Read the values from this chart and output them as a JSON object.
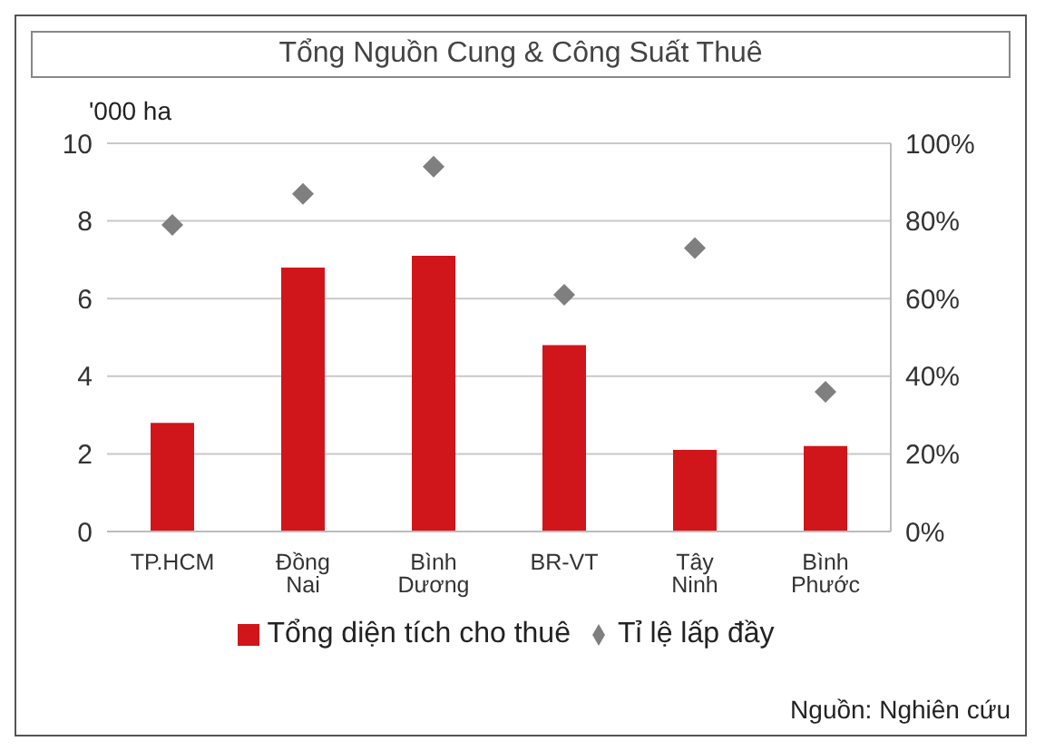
{
  "chart_data": {
    "type": "bar",
    "title": "Tổng Nguồn Cung & Công Suất Thuê",
    "ylabel": "'000 ha",
    "categories": [
      "TP.HCM",
      "Đồng Nai",
      "Bình Dương",
      "BR-VT",
      "Tây Ninh",
      "Bình Phước"
    ],
    "series": [
      {
        "name": "Tổng diện tích cho thuê",
        "color": "#d0161b",
        "values": [
          2.8,
          6.8,
          7.1,
          4.8,
          2.1,
          2.2
        ]
      },
      {
        "name": "Tỉ lệ lấp đầy",
        "type": "scatter",
        "axis": "y2",
        "marker": "diamond",
        "color": "#7f7f7f",
        "values": [
          79,
          87,
          94,
          61,
          73,
          36
        ]
      }
    ],
    "ylim": [
      0,
      10
    ],
    "yticks": [
      0,
      2,
      4,
      6,
      8,
      10
    ],
    "y2lim": [
      0,
      100
    ],
    "y2ticks": [
      {
        "value": 0,
        "label": "0%"
      },
      {
        "value": 20,
        "label": "20%"
      },
      {
        "value": 40,
        "label": "40%"
      },
      {
        "value": 60,
        "label": "60%"
      },
      {
        "value": 80,
        "label": "80%"
      },
      {
        "value": 100,
        "label": "100%"
      }
    ],
    "grid": "y",
    "legend": "bottom",
    "annotations": [
      "Nguồn: Nghiên cứu"
    ]
  }
}
